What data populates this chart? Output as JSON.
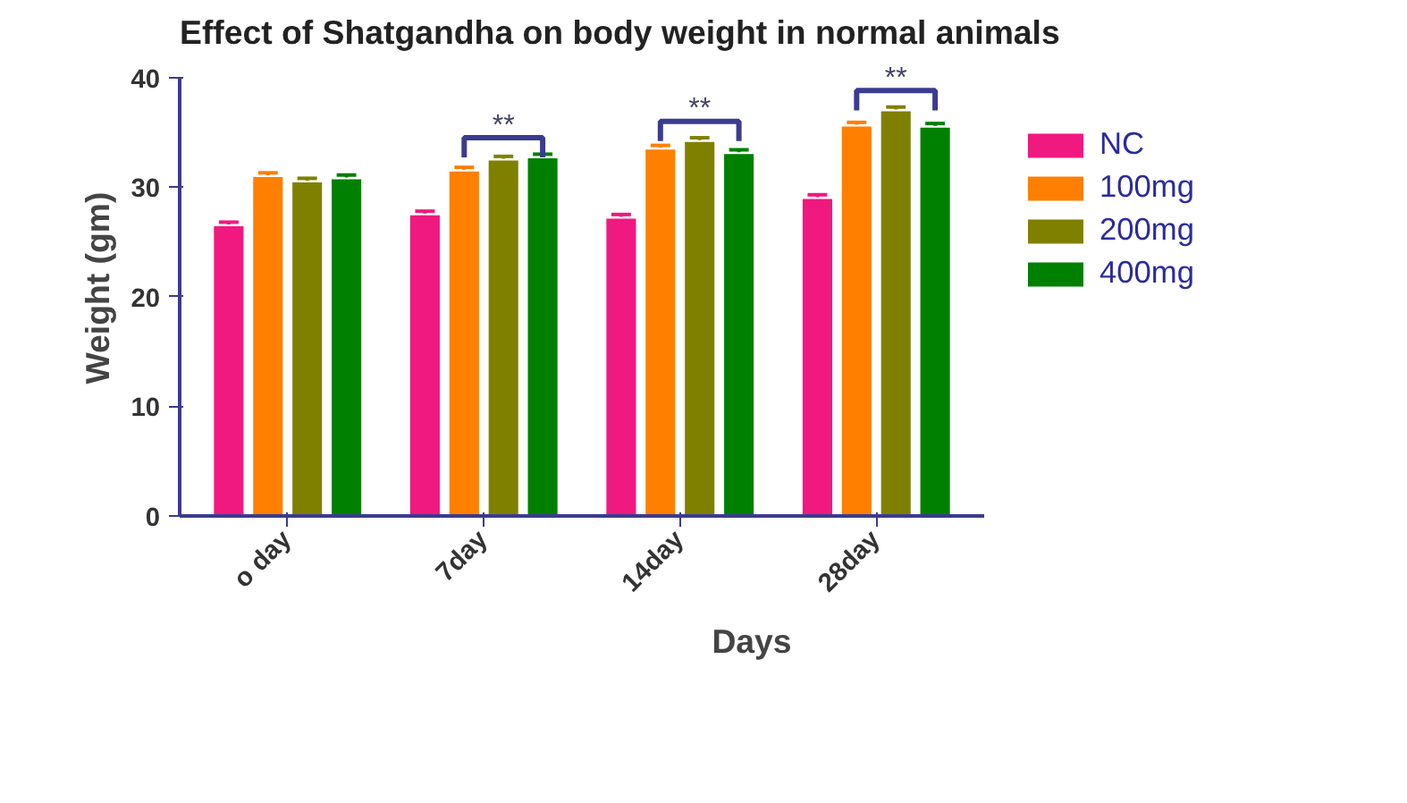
{
  "chart_data": {
    "type": "bar",
    "title": "Effect of Shatgandha on body weight in normal animals",
    "xlabel": "Days",
    "ylabel": "Weight (gm)",
    "categories": [
      "o day",
      "7day",
      "14day",
      "28day"
    ],
    "series": [
      {
        "name": "NC",
        "color": "#f0197f",
        "values": [
          26.5,
          27.5,
          27.2,
          29.0
        ],
        "errors": [
          0.3,
          0.3,
          0.3,
          0.3
        ]
      },
      {
        "name": "100mg",
        "color": "#ff7f00",
        "values": [
          31.0,
          31.5,
          33.5,
          35.6
        ],
        "errors": [
          0.3,
          0.3,
          0.3,
          0.3
        ]
      },
      {
        "name": "200mg",
        "color": "#808000",
        "values": [
          30.5,
          32.5,
          34.2,
          37.0
        ],
        "errors": [
          0.3,
          0.3,
          0.3,
          0.3
        ]
      },
      {
        "name": "400mg",
        "color": "#008000",
        "values": [
          30.8,
          32.7,
          33.1,
          35.5
        ],
        "errors": [
          0.3,
          0.3,
          0.3,
          0.3
        ]
      }
    ],
    "annotations": [
      "**",
      "**",
      "**"
    ],
    "ylim": [
      0,
      40
    ],
    "yticks": [
      0,
      10,
      20,
      30,
      40
    ],
    "grid": false,
    "legend": "right"
  }
}
